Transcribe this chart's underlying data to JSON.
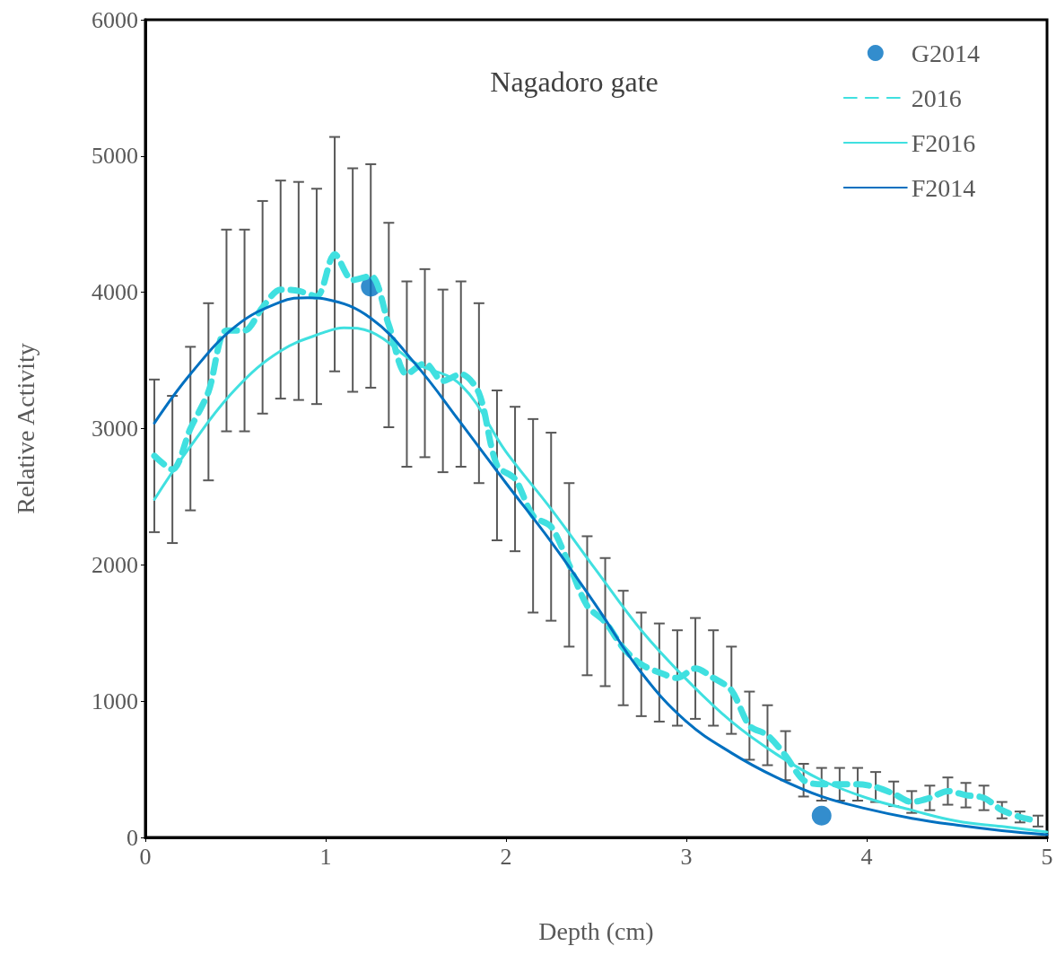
{
  "chart_data": {
    "type": "line",
    "title": "Nagadoro gate",
    "xlabel": "Depth (cm)",
    "ylabel": "Relative Activity",
    "xlim": [
      0,
      5
    ],
    "xticks": [
      0,
      1,
      2,
      3,
      4,
      5
    ],
    "ylim": [
      0,
      6000
    ],
    "yticks": [
      0,
      1000,
      2000,
      3000,
      4000,
      5000,
      6000
    ],
    "grid": false,
    "legend": "top right",
    "series": [
      {
        "name": "G2014",
        "type": "scatter",
        "color": "#0070c0",
        "marker": "circle",
        "x": [
          1.25,
          3.75
        ],
        "values": [
          4040,
          160
        ]
      },
      {
        "name": "2016",
        "color": "#40e0e0",
        "line_style": "dashed",
        "marker": "none",
        "x": [
          0.05,
          0.15,
          0.25,
          0.35,
          0.45,
          0.55,
          0.65,
          0.75,
          0.85,
          0.95,
          1.05,
          1.15,
          1.25,
          1.35,
          1.45,
          1.55,
          1.65,
          1.75,
          1.85,
          1.95,
          2.05,
          2.15,
          2.25,
          2.35,
          2.45,
          2.55,
          2.65,
          2.75,
          2.85,
          2.95,
          3.05,
          3.15,
          3.25,
          3.35,
          3.45,
          3.55,
          3.65,
          3.75,
          3.85,
          3.95,
          4.05,
          4.15,
          4.25,
          4.35,
          4.45,
          4.55,
          4.65,
          4.75,
          4.85,
          4.95
        ],
        "values": [
          2800,
          2700,
          3000,
          3270,
          3720,
          3720,
          3890,
          4020,
          4010,
          3970,
          4280,
          4090,
          4120,
          3760,
          3400,
          3480,
          3350,
          3400,
          3260,
          2730,
          2630,
          2360,
          2280,
          2000,
          1700,
          1580,
          1390,
          1270,
          1210,
          1170,
          1240,
          1170,
          1080,
          820,
          750,
          600,
          420,
          390,
          390,
          390,
          370,
          320,
          260,
          290,
          340,
          310,
          290,
          200,
          150,
          120
        ],
        "errors": [
          560,
          540,
          600,
          650,
          740,
          740,
          780,
          800,
          800,
          790,
          860,
          820,
          820,
          750,
          680,
          690,
          670,
          680,
          660,
          550,
          530,
          710,
          690,
          600,
          510,
          470,
          420,
          380,
          360,
          350,
          370,
          350,
          320,
          250,
          220,
          180,
          120,
          120,
          120,
          120,
          110,
          90,
          80,
          90,
          100,
          90,
          90,
          60,
          40,
          40
        ]
      },
      {
        "name": "F2016",
        "color": "#40e0e0",
        "line_style": "solid",
        "marker": "none",
        "x": [
          0.05,
          0.25,
          0.5,
          0.75,
          1.0,
          1.1,
          1.25,
          1.5,
          1.75,
          2.0,
          2.25,
          2.5,
          2.75,
          3.0,
          3.25,
          3.5,
          3.75,
          4.0,
          4.25,
          4.5,
          4.75,
          5.0
        ],
        "values": [
          2480,
          2870,
          3290,
          3570,
          3710,
          3740,
          3710,
          3480,
          3320,
          2830,
          2410,
          1960,
          1520,
          1160,
          850,
          610,
          420,
          290,
          200,
          120,
          80,
          40
        ]
      },
      {
        "name": "F2014",
        "color": "#0070c0",
        "line_style": "solid",
        "marker": "none",
        "x": [
          0.05,
          0.25,
          0.5,
          0.75,
          0.9,
          1.0,
          1.25,
          1.5,
          1.75,
          2.0,
          2.25,
          2.5,
          2.75,
          3.0,
          3.25,
          3.5,
          3.75,
          4.0,
          4.25,
          4.5,
          4.75,
          5.0
        ],
        "values": [
          3040,
          3400,
          3750,
          3930,
          3960,
          3950,
          3810,
          3470,
          3040,
          2600,
          2170,
          1700,
          1210,
          850,
          620,
          440,
          300,
          210,
          140,
          90,
          50,
          20
        ]
      }
    ]
  }
}
